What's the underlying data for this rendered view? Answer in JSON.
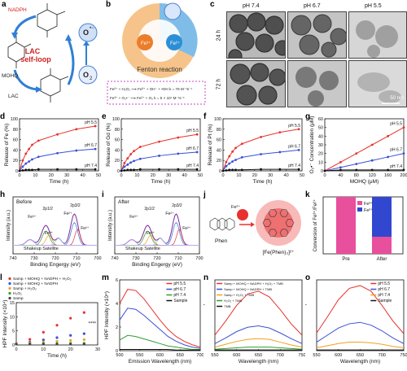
{
  "panels": {
    "a": {
      "label": "a",
      "nadph": "NADPH",
      "lac": "LAC",
      "self_loop_1": "LAC",
      "self_loop_2": "self-loop",
      "mohq": "MOHQ",
      "o2_radical": "O",
      "o2": "O",
      "o2_sub": "2",
      "radical_sup": "•−"
    },
    "b": {
      "label": "b",
      "fenton": "Fenton reaction",
      "fe2": "Fe²⁺",
      "fe3": "Fe³⁺",
      "eq1": "Fe²⁺ + H₂O₂ ⟶ Fe³⁺ + OH⁻ + •OH     k = 76 M⁻¹s⁻¹",
      "eq2": "Fe³⁺ + O₂•⁻ ⟶ Fe²⁺ + O₂         k = 5 × 10⁷ M⁻¹s⁻¹"
    },
    "c": {
      "label": "c",
      "cols": [
        "pH 7.4",
        "pH 6.7",
        "pH 5.5"
      ],
      "rows": [
        "24 h",
        "72 h"
      ],
      "scale": "50 nm"
    },
    "d": {
      "label": "d",
      "ylabel": "Release of Fe (%)",
      "xlabel": "Time (h)"
    },
    "e": {
      "label": "e",
      "ylabel": "Release of Gd (%)",
      "xlabel": "Time (h)"
    },
    "f": {
      "label": "f",
      "ylabel": "Release of Pt (%)",
      "xlabel": "Time (h)"
    },
    "g": {
      "label": "g",
      "ylabel": "O₂•⁻ Concentration (μM)",
      "xlabel": "MOHQ (μM)"
    },
    "h": {
      "label": "h",
      "title": "Before",
      "ylabel": "Intensity (a.u.)",
      "xlabel": "Binding Engergy (eV)",
      "ann": [
        "2p1/2",
        "2p3/2",
        "Fe³⁺",
        "Fe²⁺",
        "Fe³⁺",
        "Fe²⁺",
        "Shakeup Satellite"
      ]
    },
    "i": {
      "label": "i",
      "title": "After",
      "ylabel": "Intensity (a.u.)",
      "xlabel": "Binding Engergy (eV)",
      "ann": [
        "2p1/2",
        "2p3/2",
        "Fe³⁺",
        "Fe²⁺",
        "Fe³⁺",
        "Fe²⁺",
        "Shakeup Satellite"
      ]
    },
    "j": {
      "label": "j",
      "phen": "Phen",
      "complex": "[Fe(Phen)₃]²⁺",
      "fe2": "Fe²⁺"
    },
    "k": {
      "label": "k",
      "ylabel": "Conversion of Fe³⁺/Fe²⁺",
      "legend": [
        "Fe³⁺",
        "Fe²⁺"
      ],
      "cats": [
        "Pre",
        "After"
      ]
    },
    "l": {
      "label": "l",
      "ylabel": "HPF Intensity (×10⁴)",
      "xlabel": "Time (h)",
      "stars": "****",
      "legend": [
        "Samp + MOHQ + NADPH + H₂O₂",
        "Samp + MOHQ + NADPH",
        "Samp + H₂O₂",
        "H₂O₂",
        "Samp"
      ]
    },
    "m": {
      "label": "m",
      "ylabel": "HPF Intensity (×10⁴)",
      "xlabel": "Emission Wavelength (nm)",
      "legend": [
        "pH 5.5",
        "pH 6.7",
        "pH 7.4",
        "Sample"
      ]
    },
    "n": {
      "label": "n",
      "ylabel": "oxTMB Absorption",
      "xlabel": "Wavelength (nm)",
      "legend": [
        "Samp + MOHQ + NADPH + H₂O₂ + TMB",
        "Samp + MOHQ + NADPH + TMB",
        "Samp + H₂O₂ + TMB",
        "H₂O₂ + TMB",
        "TMB"
      ]
    },
    "o": {
      "label": "o",
      "ylabel": "oxTMB Absorption",
      "xlabel": "Wavelength (nm)",
      "legend": [
        "pH 5.5",
        "pH 6.7",
        "pH 7.4",
        "Sample"
      ]
    }
  },
  "chart_data": [
    {
      "id": "d",
      "type": "line",
      "x": [
        0,
        2,
        4,
        6,
        8,
        12,
        24,
        36,
        48
      ],
      "xlim": [
        0,
        50
      ],
      "ylim": [
        0,
        100
      ],
      "xticks": [
        0,
        10,
        20,
        30,
        40,
        50
      ],
      "yticks": [
        0,
        20,
        40,
        60,
        80,
        100
      ],
      "series": [
        {
          "name": "pH 5.5",
          "color": "#e8322d",
          "values": [
            0,
            20,
            33,
            42,
            50,
            58,
            70,
            80,
            86
          ]
        },
        {
          "name": "pH 6.7",
          "color": "#3a4fd6",
          "values": [
            0,
            8,
            14,
            18,
            22,
            27,
            34,
            39,
            42
          ]
        },
        {
          "name": "pH 7.4",
          "color": "#111111",
          "values": [
            0,
            1,
            2,
            2,
            2,
            3,
            3,
            3,
            3
          ]
        }
      ]
    },
    {
      "id": "e",
      "type": "line",
      "x": [
        0,
        2,
        4,
        6,
        8,
        12,
        24,
        36,
        48
      ],
      "xlim": [
        0,
        50
      ],
      "ylim": [
        0,
        100
      ],
      "xticks": [
        0,
        10,
        20,
        30,
        40,
        50
      ],
      "yticks": [
        0,
        20,
        40,
        60,
        80,
        100
      ],
      "series": [
        {
          "name": "pH 5.5",
          "color": "#e8322d",
          "values": [
            0,
            15,
            24,
            32,
            38,
            46,
            56,
            64,
            70
          ]
        },
        {
          "name": "pH 6.7",
          "color": "#3a4fd6",
          "values": [
            0,
            8,
            12,
            16,
            19,
            23,
            29,
            33,
            36
          ]
        },
        {
          "name": "pH 7.4",
          "color": "#111111",
          "values": [
            0,
            1,
            2,
            2,
            2,
            3,
            3,
            3,
            3
          ]
        }
      ]
    },
    {
      "id": "f",
      "type": "line",
      "x": [
        0,
        2,
        4,
        6,
        8,
        12,
        24,
        36,
        48
      ],
      "xlim": [
        0,
        50
      ],
      "ylim": [
        0,
        100
      ],
      "xticks": [
        0,
        10,
        20,
        30,
        40,
        50
      ],
      "yticks": [
        0,
        20,
        40,
        60,
        80,
        100
      ],
      "series": [
        {
          "name": "pH 5.5",
          "color": "#e8322d",
          "values": [
            0,
            17,
            28,
            37,
            44,
            52,
            65,
            74,
            80
          ]
        },
        {
          "name": "pH 6.7",
          "color": "#3a4fd6",
          "values": [
            0,
            9,
            14,
            18,
            21,
            26,
            32,
            36,
            40
          ]
        },
        {
          "name": "pH 7.4",
          "color": "#111111",
          "values": [
            0,
            1,
            2,
            2,
            2,
            2,
            3,
            3,
            3
          ]
        }
      ]
    },
    {
      "id": "g",
      "type": "line",
      "x": [
        0,
        40,
        80,
        120,
        160,
        200
      ],
      "xlim": [
        0,
        200
      ],
      "ylim": [
        0,
        60
      ],
      "xticks": [
        0,
        40,
        80,
        120,
        160,
        200
      ],
      "yticks": [
        0,
        10,
        20,
        30,
        40,
        50,
        60
      ],
      "series": [
        {
          "name": "pH 5.5",
          "color": "#e8322d",
          "values": [
            0,
            10,
            20,
            30,
            40,
            50
          ]
        },
        {
          "name": "pH 6.7",
          "color": "#3a4fd6",
          "values": [
            0,
            4,
            8,
            12,
            16,
            20
          ]
        },
        {
          "name": "pH 7.4",
          "color": "#111111",
          "values": [
            0,
            1,
            1,
            1,
            1,
            1
          ]
        }
      ]
    },
    {
      "id": "k",
      "type": "bar",
      "categories": [
        "Pre",
        "After"
      ],
      "ylim": [
        0,
        100
      ],
      "series": [
        {
          "name": "Fe³⁺",
          "color": "#e84f9c",
          "values": [
            100,
            30
          ]
        },
        {
          "name": "Fe²⁺",
          "color": "#3247cf",
          "values": [
            0,
            70
          ]
        }
      ]
    },
    {
      "id": "l",
      "type": "scatter",
      "x": [
        0,
        5,
        10,
        15,
        20,
        25
      ],
      "xlim": [
        0,
        30
      ],
      "ylim": [
        0,
        15
      ],
      "xticks": [
        0,
        10,
        20,
        30
      ],
      "yticks": [
        0,
        5,
        10,
        15
      ],
      "series": [
        {
          "name": "Samp + MOHQ + NADPH + H₂O₂",
          "color": "#e8322d",
          "values": [
            0.5,
            2,
            4.5,
            7,
            9.5,
            11.5
          ]
        },
        {
          "name": "Samp + MOHQ + NADPH",
          "color": "#3a4fd6",
          "values": [
            0.4,
            1,
            1.8,
            2.6,
            3.4,
            4
          ]
        },
        {
          "name": "Samp + H₂O₂",
          "color": "#f0a020",
          "values": [
            0.4,
            0.7,
            1,
            1.3,
            1.6,
            1.9
          ]
        },
        {
          "name": "H₂O₂",
          "color": "#2ca02c",
          "values": [
            0.3,
            0.4,
            0.5,
            0.5,
            0.6,
            0.6
          ]
        },
        {
          "name": "Samp",
          "color": "#444444",
          "values": [
            0.3,
            0.3,
            0.3,
            0.3,
            0.3,
            0.3
          ]
        }
      ]
    },
    {
      "id": "m",
      "type": "line",
      "x": [
        500,
        520,
        540,
        560,
        580,
        600,
        620,
        640,
        660,
        680,
        700
      ],
      "xlim": [
        500,
        700
      ],
      "ylim": [
        0,
        6
      ],
      "xticks": [
        500,
        550,
        600,
        650,
        700
      ],
      "yticks": [
        0,
        2,
        4,
        6
      ],
      "series": [
        {
          "name": "pH 5.5",
          "color": "#e8322d",
          "values": [
            4.0,
            5.2,
            5.1,
            4.4,
            3.5,
            2.6,
            1.8,
            1.2,
            0.8,
            0.5,
            0.3
          ]
        },
        {
          "name": "pH 6.7",
          "color": "#3a4fd6",
          "values": [
            2.6,
            3.6,
            3.5,
            3.0,
            2.4,
            1.8,
            1.2,
            0.8,
            0.5,
            0.3,
            0.2
          ]
        },
        {
          "name": "pH 7.4",
          "color": "#2ca02c",
          "values": [
            0.9,
            1.3,
            1.2,
            1.0,
            0.8,
            0.6,
            0.4,
            0.3,
            0.2,
            0.1,
            0.1
          ]
        },
        {
          "name": "Sample",
          "color": "#111111",
          "values": [
            0.1,
            0.1,
            0.1,
            0.1,
            0.1,
            0.1,
            0.1,
            0.05,
            0.05,
            0.05,
            0.05
          ]
        }
      ]
    },
    {
      "id": "n",
      "type": "line",
      "x": [
        550,
        575,
        600,
        625,
        650,
        675,
        700,
        725,
        750
      ],
      "xlim": [
        550,
        750
      ],
      "ylim": [
        0,
        1.0
      ],
      "xticks": [
        550,
        600,
        650,
        700,
        750
      ],
      "yticks": [],
      "series": [
        {
          "name": "Samp + MOHQ + NADPH + H₂O₂ + TMB",
          "color": "#e8322d",
          "values": [
            0.22,
            0.42,
            0.64,
            0.8,
            0.84,
            0.76,
            0.58,
            0.38,
            0.22
          ]
        },
        {
          "name": "Samp + MOHQ + NADPH + TMB",
          "color": "#3a4fd6",
          "values": [
            0.1,
            0.18,
            0.27,
            0.33,
            0.35,
            0.32,
            0.25,
            0.17,
            0.1
          ]
        },
        {
          "name": "Samp + H₂O₂ + TMB",
          "color": "#f0a020",
          "values": [
            0.05,
            0.09,
            0.13,
            0.16,
            0.17,
            0.16,
            0.12,
            0.08,
            0.05
          ]
        },
        {
          "name": "H₂O₂ + TMB",
          "color": "#2ca02c",
          "values": [
            0.02,
            0.03,
            0.04,
            0.05,
            0.05,
            0.05,
            0.04,
            0.03,
            0.02
          ]
        },
        {
          "name": "TMB",
          "color": "#111111",
          "values": [
            0.01,
            0.01,
            0.01,
            0.01,
            0.01,
            0.01,
            0.01,
            0.01,
            0.01
          ]
        }
      ]
    },
    {
      "id": "o",
      "type": "line",
      "x": [
        550,
        575,
        600,
        625,
        650,
        675,
        700,
        725,
        750
      ],
      "xlim": [
        550,
        750
      ],
      "ylim": [
        0,
        1.0
      ],
      "xticks": [
        550,
        600,
        650,
        700,
        750
      ],
      "yticks": [],
      "series": [
        {
          "name": "pH 5.5",
          "color": "#e8322d",
          "values": [
            0.25,
            0.48,
            0.72,
            0.88,
            0.92,
            0.84,
            0.64,
            0.42,
            0.24
          ]
        },
        {
          "name": "pH 6.7",
          "color": "#3a4fd6",
          "values": [
            0.12,
            0.22,
            0.32,
            0.38,
            0.4,
            0.36,
            0.28,
            0.18,
            0.1
          ]
        },
        {
          "name": "pH 7.4",
          "color": "#f0a020",
          "values": [
            0.04,
            0.07,
            0.1,
            0.12,
            0.12,
            0.11,
            0.09,
            0.06,
            0.04
          ]
        },
        {
          "name": "Sample",
          "color": "#111111",
          "values": [
            0.01,
            0.01,
            0.01,
            0.01,
            0.01,
            0.01,
            0.01,
            0.01,
            0.01
          ]
        }
      ]
    }
  ]
}
